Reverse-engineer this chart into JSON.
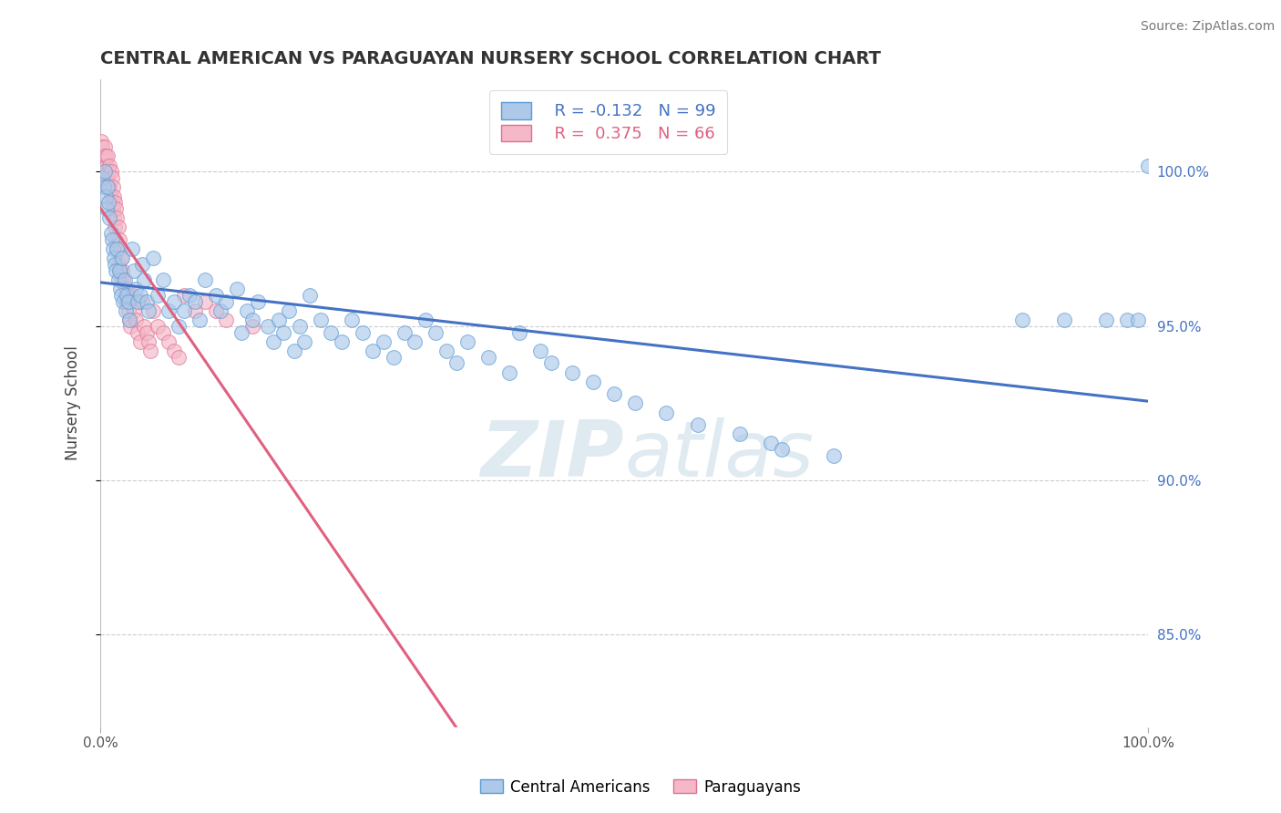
{
  "title": "CENTRAL AMERICAN VS PARAGUAYAN NURSERY SCHOOL CORRELATION CHART",
  "source": "Source: ZipAtlas.com",
  "ylabel": "Nursery School",
  "xmin": 0.0,
  "xmax": 1.0,
  "ymin": 0.82,
  "ymax": 1.03,
  "yticks": [
    0.85,
    0.9,
    0.95,
    1.0
  ],
  "ytick_labels": [
    "85.0%",
    "90.0%",
    "95.0%",
    "100.0%"
  ],
  "legend_blue_label": "Central Americans",
  "legend_pink_label": "Paraguayans",
  "blue_R": "-0.132",
  "blue_N": "99",
  "pink_R": "0.375",
  "pink_N": "66",
  "blue_color": "#adc8e8",
  "blue_edge_color": "#5b9bd5",
  "blue_line_color": "#4472c4",
  "pink_color": "#f4b8c8",
  "pink_edge_color": "#e07090",
  "pink_line_color": "#e06080",
  "blue_scatter_x": [
    0.002,
    0.003,
    0.004,
    0.005,
    0.006,
    0.007,
    0.008,
    0.009,
    0.01,
    0.011,
    0.012,
    0.013,
    0.014,
    0.015,
    0.016,
    0.017,
    0.018,
    0.019,
    0.02,
    0.021,
    0.022,
    0.023,
    0.024,
    0.025,
    0.027,
    0.028,
    0.03,
    0.032,
    0.034,
    0.036,
    0.038,
    0.04,
    0.042,
    0.044,
    0.046,
    0.05,
    0.055,
    0.06,
    0.065,
    0.07,
    0.075,
    0.08,
    0.085,
    0.09,
    0.095,
    0.1,
    0.11,
    0.115,
    0.12,
    0.13,
    0.135,
    0.14,
    0.145,
    0.15,
    0.16,
    0.165,
    0.17,
    0.175,
    0.18,
    0.185,
    0.19,
    0.195,
    0.2,
    0.21,
    0.22,
    0.23,
    0.24,
    0.25,
    0.26,
    0.27,
    0.28,
    0.29,
    0.3,
    0.31,
    0.32,
    0.33,
    0.34,
    0.35,
    0.37,
    0.39,
    0.4,
    0.42,
    0.43,
    0.45,
    0.47,
    0.49,
    0.51,
    0.54,
    0.57,
    0.61,
    0.64,
    0.65,
    0.7,
    0.88,
    0.92,
    0.96,
    0.98,
    0.99,
    1.0
  ],
  "blue_scatter_y": [
    0.998,
    0.995,
    1.0,
    0.992,
    0.988,
    0.995,
    0.99,
    0.985,
    0.98,
    0.978,
    0.975,
    0.972,
    0.97,
    0.968,
    0.975,
    0.965,
    0.968,
    0.962,
    0.96,
    0.972,
    0.958,
    0.965,
    0.955,
    0.96,
    0.958,
    0.952,
    0.975,
    0.968,
    0.962,
    0.958,
    0.96,
    0.97,
    0.965,
    0.958,
    0.955,
    0.972,
    0.96,
    0.965,
    0.955,
    0.958,
    0.95,
    0.955,
    0.96,
    0.958,
    0.952,
    0.965,
    0.96,
    0.955,
    0.958,
    0.962,
    0.948,
    0.955,
    0.952,
    0.958,
    0.95,
    0.945,
    0.952,
    0.948,
    0.955,
    0.942,
    0.95,
    0.945,
    0.96,
    0.952,
    0.948,
    0.945,
    0.952,
    0.948,
    0.942,
    0.945,
    0.94,
    0.948,
    0.945,
    0.952,
    0.948,
    0.942,
    0.938,
    0.945,
    0.94,
    0.935,
    0.948,
    0.942,
    0.938,
    0.935,
    0.932,
    0.928,
    0.925,
    0.922,
    0.918,
    0.915,
    0.912,
    0.91,
    0.908,
    0.952,
    0.952,
    0.952,
    0.952,
    0.952,
    1.002
  ],
  "pink_scatter_x": [
    0.001,
    0.002,
    0.003,
    0.003,
    0.004,
    0.005,
    0.005,
    0.006,
    0.007,
    0.007,
    0.008,
    0.008,
    0.009,
    0.009,
    0.01,
    0.01,
    0.011,
    0.011,
    0.012,
    0.012,
    0.013,
    0.013,
    0.014,
    0.014,
    0.015,
    0.015,
    0.016,
    0.016,
    0.017,
    0.017,
    0.018,
    0.018,
    0.019,
    0.02,
    0.02,
    0.021,
    0.022,
    0.023,
    0.024,
    0.025,
    0.026,
    0.027,
    0.028,
    0.029,
    0.03,
    0.032,
    0.034,
    0.036,
    0.038,
    0.04,
    0.042,
    0.044,
    0.046,
    0.048,
    0.05,
    0.055,
    0.06,
    0.065,
    0.07,
    0.075,
    0.08,
    0.09,
    0.1,
    0.11,
    0.12,
    0.145
  ],
  "pink_scatter_y": [
    1.01,
    1.008,
    1.005,
    1.002,
    1.008,
    1.005,
    0.998,
    1.002,
    1.005,
    0.998,
    1.0,
    0.995,
    1.002,
    0.995,
    1.0,
    0.992,
    0.998,
    0.99,
    0.995,
    0.988,
    0.992,
    0.985,
    0.99,
    0.982,
    0.988,
    0.978,
    0.985,
    0.975,
    0.982,
    0.97,
    0.978,
    0.968,
    0.975,
    0.972,
    0.965,
    0.968,
    0.965,
    0.962,
    0.958,
    0.962,
    0.958,
    0.955,
    0.952,
    0.95,
    0.96,
    0.955,
    0.952,
    0.948,
    0.945,
    0.958,
    0.95,
    0.948,
    0.945,
    0.942,
    0.955,
    0.95,
    0.948,
    0.945,
    0.942,
    0.94,
    0.96,
    0.955,
    0.958,
    0.955,
    0.952,
    0.95
  ],
  "watermark_zip": "ZIP",
  "watermark_atlas": "atlas",
  "background_color": "#ffffff",
  "grid_color": "#cccccc"
}
